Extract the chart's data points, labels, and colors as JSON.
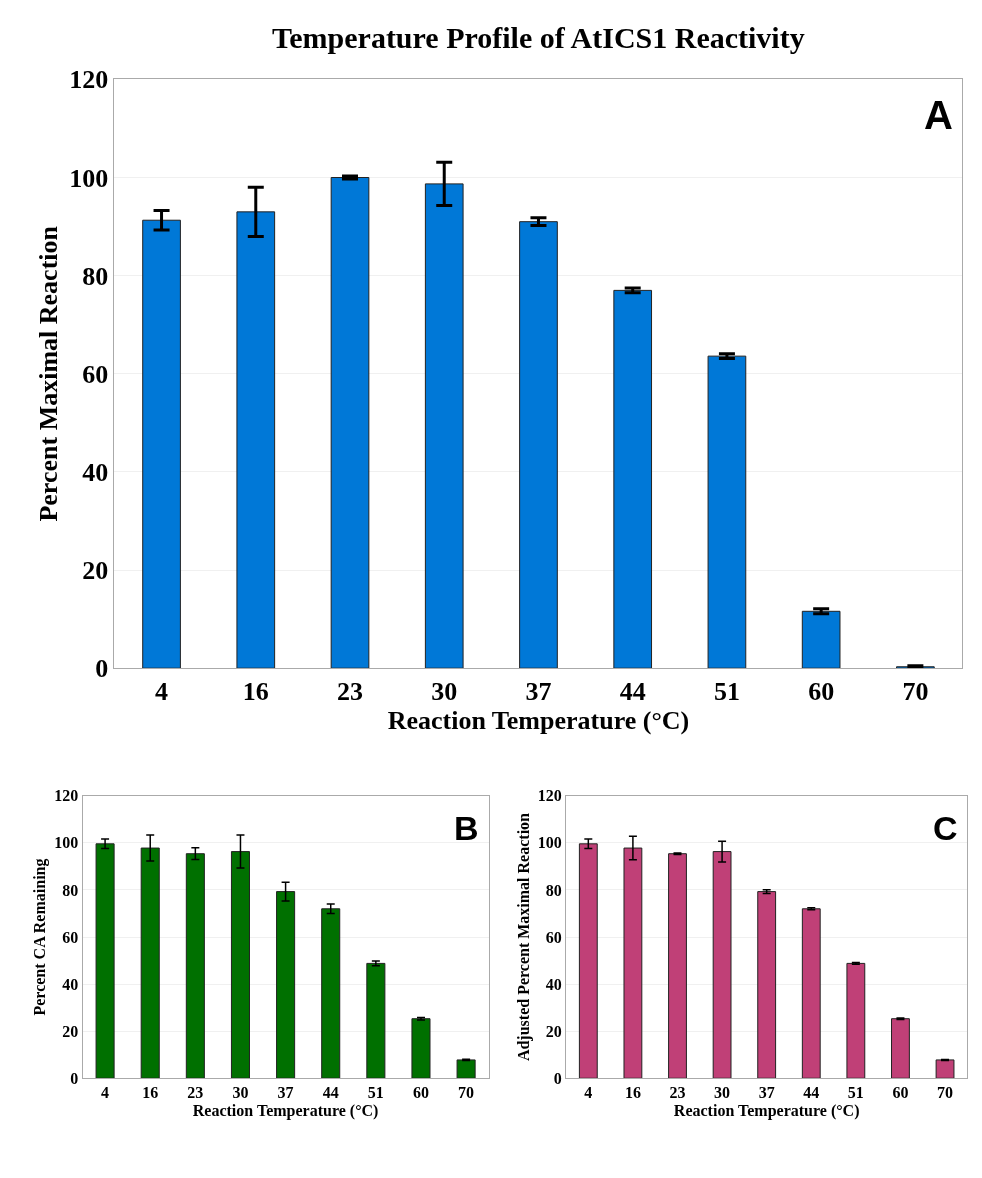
{
  "chart_data": [
    {
      "type": "bar",
      "title": "Temperature Profile of AtICS1 Reactivity",
      "xlabel": "Reaction Temperature (°C)",
      "ylabel": "Percent Maximal Reaction",
      "categories": [
        "4",
        "16",
        "23",
        "30",
        "37",
        "44",
        "51",
        "60",
        "70"
      ],
      "values": [
        91.3,
        93,
        100,
        98.7,
        91,
        77,
        63.6,
        11.6,
        0.3
      ],
      "errors": [
        2,
        5,
        0.3,
        4.4,
        0.8,
        0.5,
        0.5,
        0.5,
        0.2
      ],
      "color": "#0078d7",
      "ylim": [
        0,
        120
      ],
      "yticks": [
        0,
        20,
        40,
        60,
        80,
        100,
        120
      ],
      "grid": "y",
      "annotations": [
        "A"
      ]
    },
    {
      "type": "bar",
      "xlabel": "Reaction Temperature (°C)",
      "ylabel": "Percent CA Remaining",
      "categories": [
        "4",
        "16",
        "23",
        "30",
        "37",
        "44",
        "51",
        "60",
        "70"
      ],
      "values": [
        99.6,
        97.8,
        95.4,
        96.3,
        79.3,
        72,
        48.8,
        25.3,
        7.8
      ],
      "errors": [
        2,
        5.5,
        2.5,
        7,
        4,
        2,
        1,
        0.5,
        0.3
      ],
      "color": "#007000",
      "ylim": [
        0,
        120
      ],
      "yticks": [
        0,
        20,
        40,
        60,
        80,
        100,
        120
      ],
      "grid": "y",
      "annotations": [
        "B"
      ]
    },
    {
      "type": "bar",
      "xlabel": "Reaction Temperature (°C)",
      "ylabel": "Adjusted Percent Maximal Reaction",
      "categories": [
        "4",
        "16",
        "23",
        "30",
        "37",
        "44",
        "51",
        "60",
        "70"
      ],
      "values": [
        99.6,
        97.8,
        95.4,
        96.3,
        79.3,
        72,
        48.8,
        25.3,
        7.8
      ],
      "errors": [
        2,
        5,
        0.3,
        4.4,
        0.8,
        0.4,
        0.4,
        0.3,
        0.2
      ],
      "color": "#c04077",
      "ylim": [
        0,
        120
      ],
      "yticks": [
        0,
        20,
        40,
        60,
        80,
        100,
        120
      ],
      "grid": "y",
      "annotations": [
        "C"
      ]
    }
  ]
}
